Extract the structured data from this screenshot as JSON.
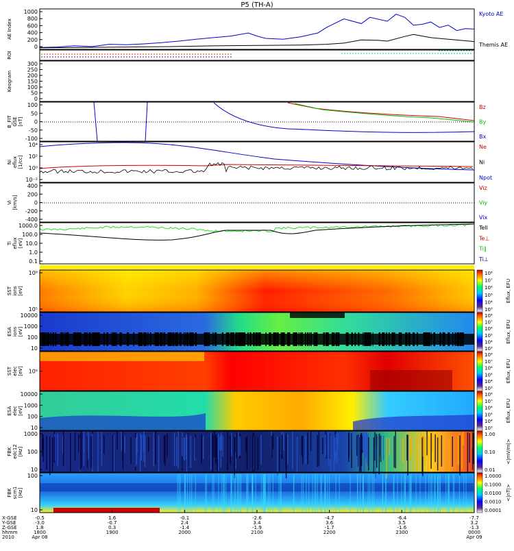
{
  "title": "P5 (TH-A)",
  "chart_data": {
    "type": "line",
    "title": "P5 (TH-A)",
    "panels": [
      {
        "id": "ae",
        "ylabel": [
          "AE Index"
        ],
        "yticks": [
          "1000",
          "800",
          "600",
          "400",
          "200",
          "0"
        ],
        "series": [
          {
            "name": "Kyoto AE",
            "color": "#0000cc"
          },
          {
            "name": "Themis AE",
            "color": "#000000"
          }
        ]
      },
      {
        "id": "roi",
        "ylabel": [
          "ROI"
        ],
        "yticks": []
      },
      {
        "id": "keogram",
        "ylabel": [
          "Keogram"
        ],
        "yticks": [
          "300",
          "250",
          "200",
          "150",
          "100",
          "50",
          "0"
        ]
      },
      {
        "id": "bfit",
        "ylabel": [
          "B_FIT",
          "GSE",
          "[nT]"
        ],
        "yticks": [
          "100",
          "50",
          "0",
          "-50",
          "-100"
        ],
        "series": [
          {
            "name": "Bz",
            "color": "#cc0000"
          },
          {
            "name": "By",
            "color": "#00bb00"
          },
          {
            "name": "Bx",
            "color": "#0000cc"
          }
        ]
      },
      {
        "id": "ni",
        "ylabel": [
          "Ni",
          "eflux",
          "[1/cc]"
        ],
        "yticks": [
          "10⁴",
          "10²",
          "10⁰",
          "10⁻²"
        ],
        "series": [
          {
            "name": "Ne",
            "color": "#cc0000"
          },
          {
            "name": "Ni",
            "color": "#000000"
          },
          {
            "name": "Npot",
            "color": "#0000cc"
          }
        ]
      },
      {
        "id": "vi",
        "ylabel": [
          "Vi",
          "[km/s]"
        ],
        "yticks": [
          "400",
          "200",
          "0",
          "-200",
          "-400"
        ],
        "series": [
          {
            "name": "Viz",
            "color": "#cc0000"
          },
          {
            "name": "Viy",
            "color": "#00bb00"
          },
          {
            "name": "Vix",
            "color": "#0000cc"
          }
        ]
      },
      {
        "id": "ti",
        "ylabel": [
          "Ti",
          "eflux",
          "[eV]"
        ],
        "yticks": [
          "1000.0",
          "100.0",
          "10.0",
          "1.0",
          "0.1"
        ],
        "series": [
          {
            "name": "Tell",
            "color": "#000000"
          },
          {
            "name": "Te⊥",
            "color": "#cc0000"
          },
          {
            "name": "Ti∥",
            "color": "#00bb00"
          },
          {
            "name": "Ti⊥",
            "color": "#0000cc"
          }
        ]
      },
      {
        "id": "sst_i",
        "ylabel": [
          "SST",
          "ions",
          "[eV]"
        ],
        "yticks": [
          "10⁶",
          "10⁵"
        ],
        "cbar": "ions"
      },
      {
        "id": "esa_i",
        "ylabel": [
          "ESA",
          "ions",
          "[eV]"
        ],
        "yticks": [
          "10000",
          "1000",
          "100",
          "10"
        ],
        "cbar": "ions"
      },
      {
        "id": "sst_e",
        "ylabel": [
          "SST",
          "elec",
          "[eV]"
        ],
        "yticks": [
          "10⁵"
        ],
        "cbar": "elec"
      },
      {
        "id": "esa_e",
        "ylabel": [
          "ESA",
          "elec",
          "[eV]"
        ],
        "yticks": [
          "10000",
          "1000",
          "100",
          "10"
        ],
        "cbar": "elec"
      },
      {
        "id": "fbk_e",
        "ylabel": [
          "FBK",
          "edc12",
          "[Hz]"
        ],
        "yticks": [
          "1000",
          "100",
          "10"
        ],
        "cbar": "fbk_e"
      },
      {
        "id": "fbk_b",
        "ylabel": [
          "FBK",
          "scm1",
          "[Hz]"
        ],
        "yticks": [
          "100",
          "10"
        ],
        "cbar": "fbk_b"
      }
    ],
    "ae_series": [
      {
        "name": "Kyoto AE",
        "x": [
          0,
          0.04,
          0.08,
          0.12,
          0.16,
          0.2,
          0.24,
          0.28,
          0.32,
          0.36,
          0.4,
          0.44,
          0.48,
          0.5,
          0.52,
          0.56,
          0.6,
          0.64,
          0.66,
          0.7,
          0.74,
          0.76,
          0.8,
          0.82,
          0.84,
          0.86,
          0.88,
          0.9,
          0.92,
          0.94,
          0.96,
          0.98,
          1.0
        ],
        "y": [
          50,
          60,
          90,
          70,
          130,
          120,
          140,
          170,
          210,
          260,
          300,
          340,
          420,
          340,
          280,
          260,
          320,
          420,
          560,
          780,
          660,
          820,
          720,
          900,
          820,
          620,
          640,
          700,
          560,
          620,
          480,
          530,
          520
        ]
      },
      {
        "name": "Themis AE",
        "x": [
          0,
          0.1,
          0.2,
          0.3,
          0.4,
          0.5,
          0.6,
          0.66,
          0.7,
          0.74,
          0.78,
          0.8,
          0.84,
          0.86,
          0.9,
          0.94,
          0.98,
          1.0
        ],
        "y": [
          40,
          50,
          60,
          70,
          90,
          100,
          110,
          130,
          160,
          240,
          230,
          210,
          330,
          380,
          300,
          260,
          220,
          200
        ]
      }
    ],
    "colorbars": {
      "ions": {
        "label": "Eflux, EFU",
        "ticks": [
          "10⁸",
          "10⁷",
          "10⁶",
          "10⁵",
          "10⁴",
          "10³"
        ]
      },
      "elec": {
        "label": "Eflux, EFU",
        "ticks": [
          "10⁸",
          "10⁷",
          "10⁶",
          "10⁵",
          "10⁴",
          "10³"
        ]
      },
      "fbk_e": {
        "label": "<|mV/m|>",
        "ticks": [
          "1.00",
          "0.10",
          "0.01"
        ]
      },
      "fbk_b": {
        "label": "<|nT|>",
        "ticks": [
          "1.0000",
          "0.1000",
          "0.0100",
          "0.0010",
          "0.0001"
        ]
      }
    },
    "time_axis": {
      "row_labels": [
        "X-GSE",
        "Y-GSE",
        "Z-GSE",
        "hhmm",
        "2010"
      ],
      "columns": [
        [
          "-0.5",
          "-3.0",
          "1.8",
          "1800",
          "Apr 08"
        ],
        [
          "1.6",
          "-0.7",
          "0.3",
          "1900",
          ""
        ],
        [
          "-0.1",
          "2.4",
          "-1.4",
          "2000",
          ""
        ],
        [
          "-2.6",
          "3.4",
          "-1.9",
          "2100",
          ""
        ],
        [
          "-4.7",
          "3.6",
          "-1.7",
          "2200",
          ""
        ],
        [
          "-6.4",
          "3.5",
          "-1.6",
          "2300",
          ""
        ],
        [
          "-7.7",
          "3.2",
          "-1.3",
          "0000",
          "Apr 09"
        ]
      ]
    }
  }
}
